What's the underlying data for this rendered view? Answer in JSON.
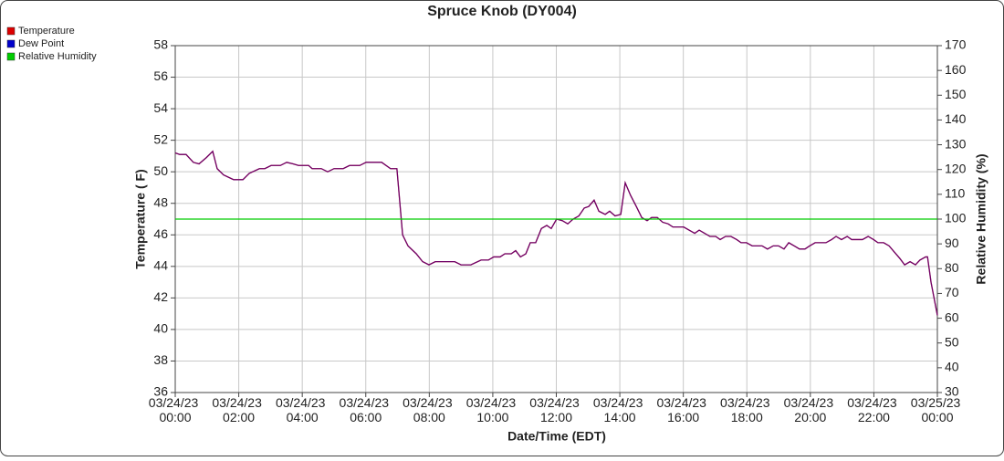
{
  "chart_data": {
    "type": "line",
    "title": "Spruce Knob (DY004)",
    "xlabel": "Date/Time (EDT)",
    "ylabel": "Temperature ( F)",
    "y2label": "Relative Humidity (%)",
    "xlim": [
      0,
      24
    ],
    "xticks": [
      {
        "value": 0,
        "label": "03/24/23 00:00"
      },
      {
        "value": 2,
        "label": "03/24/23 02:00"
      },
      {
        "value": 4,
        "label": "03/24/23 04:00"
      },
      {
        "value": 6,
        "label": "03/24/23 06:00"
      },
      {
        "value": 8,
        "label": "03/24/23 08:00"
      },
      {
        "value": 10,
        "label": "03/24/23 10:00"
      },
      {
        "value": 12,
        "label": "03/24/23 12:00"
      },
      {
        "value": 14,
        "label": "03/24/23 14:00"
      },
      {
        "value": 16,
        "label": "03/24/23 16:00"
      },
      {
        "value": 18,
        "label": "03/24/23 18:00"
      },
      {
        "value": 20,
        "label": "03/24/23 20:00"
      },
      {
        "value": 22,
        "label": "03/24/23 22:00"
      },
      {
        "value": 24,
        "label": "03/25/23 00:00"
      }
    ],
    "ylim": [
      36,
      58
    ],
    "yticks": [
      36,
      38,
      40,
      42,
      44,
      46,
      48,
      50,
      52,
      54,
      56,
      58
    ],
    "y2lim": [
      30,
      170
    ],
    "y2ticks": [
      30,
      40,
      50,
      60,
      70,
      80,
      90,
      100,
      110,
      120,
      130,
      140,
      150,
      160,
      170
    ],
    "grid": true,
    "legend": "top-left",
    "series": [
      {
        "name": "Temperature",
        "color": "#dd0000",
        "x": [
          0,
          0.14,
          0.34,
          0.57,
          0.75,
          0.98,
          1.18,
          1.32,
          1.52,
          1.84,
          2.13,
          2.33,
          2.65,
          2.82,
          3.02,
          3.31,
          3.51,
          3.71,
          3.88,
          4.2,
          4.31,
          4.6,
          4.8,
          5.0,
          5.29,
          5.49,
          5.81,
          6.01,
          6.5,
          6.78,
          6.98,
          7.16,
          7.33,
          7.59,
          7.79,
          7.99,
          8.19,
          8.8,
          9.0,
          9.31,
          9.63,
          9.86,
          10.03,
          10.23,
          10.38,
          10.58,
          10.72,
          10.87,
          11.04,
          11.18,
          11.35,
          11.53,
          11.7,
          11.84,
          12.01,
          12.19,
          12.36,
          12.53,
          12.71,
          12.88,
          13.02,
          13.19,
          13.34,
          13.54,
          13.68,
          13.85,
          14.03,
          14.17,
          14.34,
          14.52,
          14.69,
          14.86,
          15.0,
          15.18,
          15.35,
          15.52,
          15.67,
          16.01,
          16.18,
          16.36,
          16.5,
          16.67,
          16.84,
          17.02,
          17.16,
          17.33,
          17.5,
          17.68,
          17.82,
          17.99,
          18.17,
          18.48,
          18.65,
          18.83,
          19.0,
          19.17,
          19.32,
          19.49,
          19.66,
          19.83,
          19.98,
          20.15,
          20.49,
          20.67,
          20.81,
          20.98,
          21.16,
          21.3,
          21.64,
          21.82,
          21.99,
          22.13,
          22.31,
          22.48,
          22.65,
          22.82,
          22.97,
          23.14,
          23.31,
          23.45,
          23.63,
          23.69,
          23.8,
          24
        ],
        "values": [
          51.2,
          51.1,
          51.1,
          50.6,
          50.5,
          50.9,
          51.3,
          50.2,
          49.8,
          49.5,
          49.5,
          49.9,
          50.2,
          50.2,
          50.4,
          50.4,
          50.6,
          50.5,
          50.4,
          50.4,
          50.2,
          50.2,
          50.0,
          50.2,
          50.2,
          50.4,
          50.4,
          50.6,
          50.6,
          50.2,
          50.2,
          46.0,
          45.3,
          44.8,
          44.3,
          44.1,
          44.3,
          44.3,
          44.1,
          44.1,
          44.4,
          44.4,
          44.6,
          44.6,
          44.8,
          44.8,
          45.0,
          44.6,
          44.8,
          45.5,
          45.5,
          46.4,
          46.6,
          46.4,
          47.0,
          46.9,
          46.7,
          47.0,
          47.2,
          47.7,
          47.8,
          48.2,
          47.5,
          47.3,
          47.5,
          47.2,
          47.3,
          49.3,
          48.5,
          47.8,
          47.1,
          46.9,
          47.1,
          47.1,
          46.8,
          46.7,
          46.5,
          46.5,
          46.3,
          46.1,
          46.3,
          46.1,
          45.9,
          45.9,
          45.7,
          45.9,
          45.9,
          45.7,
          45.5,
          45.5,
          45.3,
          45.3,
          45.1,
          45.3,
          45.3,
          45.1,
          45.5,
          45.3,
          45.1,
          45.1,
          45.3,
          45.5,
          45.5,
          45.7,
          45.9,
          45.7,
          45.9,
          45.7,
          45.7,
          45.9,
          45.7,
          45.5,
          45.5,
          45.3,
          44.9,
          44.5,
          44.1,
          44.3,
          44.1,
          44.4,
          44.6,
          44.6,
          43.0,
          40.9
        ]
      },
      {
        "name": "Dew Point",
        "color": "#0000cc",
        "x": [
          0,
          0.14,
          0.34,
          0.57,
          0.75,
          0.98,
          1.18,
          1.32,
          1.52,
          1.84,
          2.13,
          2.33,
          2.65,
          2.82,
          3.02,
          3.31,
          3.51,
          3.71,
          3.88,
          4.2,
          4.31,
          4.6,
          4.8,
          5.0,
          5.29,
          5.49,
          5.81,
          6.01,
          6.5,
          6.78,
          6.98,
          7.16,
          7.33,
          7.59,
          7.79,
          7.99,
          8.19,
          8.8,
          9.0,
          9.31,
          9.63,
          9.86,
          10.03,
          10.23,
          10.38,
          10.58,
          10.72,
          10.87,
          11.04,
          11.18,
          11.35,
          11.53,
          11.7,
          11.84,
          12.01,
          12.19,
          12.36,
          12.53,
          12.71,
          12.88,
          13.02,
          13.19,
          13.34,
          13.54,
          13.68,
          13.85,
          14.03,
          14.17,
          14.34,
          14.52,
          14.69,
          14.86,
          15.0,
          15.18,
          15.35,
          15.52,
          15.67,
          16.01,
          16.18,
          16.36,
          16.5,
          16.67,
          16.84,
          17.02,
          17.16,
          17.33,
          17.5,
          17.68,
          17.82,
          17.99,
          18.17,
          18.48,
          18.65,
          18.83,
          19.0,
          19.17,
          19.32,
          19.49,
          19.66,
          19.83,
          19.98,
          20.15,
          20.49,
          20.67,
          20.81,
          20.98,
          21.16,
          21.3,
          21.64,
          21.82,
          21.99,
          22.13,
          22.31,
          22.48,
          22.65,
          22.82,
          22.97,
          23.14,
          23.31,
          23.45,
          23.63,
          23.69,
          23.8,
          24
        ],
        "values": [
          51.2,
          51.1,
          51.1,
          50.6,
          50.5,
          50.9,
          51.3,
          50.2,
          49.8,
          49.5,
          49.5,
          49.9,
          50.2,
          50.2,
          50.4,
          50.4,
          50.6,
          50.5,
          50.4,
          50.4,
          50.2,
          50.2,
          50.0,
          50.2,
          50.2,
          50.4,
          50.4,
          50.6,
          50.6,
          50.2,
          50.2,
          46.0,
          45.3,
          44.8,
          44.3,
          44.1,
          44.3,
          44.3,
          44.1,
          44.1,
          44.4,
          44.4,
          44.6,
          44.6,
          44.8,
          44.8,
          45.0,
          44.6,
          44.8,
          45.5,
          45.5,
          46.4,
          46.6,
          46.4,
          47.0,
          46.9,
          46.7,
          47.0,
          47.2,
          47.7,
          47.8,
          48.2,
          47.5,
          47.3,
          47.5,
          47.2,
          47.3,
          49.3,
          48.5,
          47.8,
          47.1,
          46.9,
          47.1,
          47.1,
          46.8,
          46.7,
          46.5,
          46.5,
          46.3,
          46.1,
          46.3,
          46.1,
          45.9,
          45.9,
          45.7,
          45.9,
          45.9,
          45.7,
          45.5,
          45.5,
          45.3,
          45.3,
          45.1,
          45.3,
          45.3,
          45.1,
          45.5,
          45.3,
          45.1,
          45.1,
          45.3,
          45.5,
          45.5,
          45.7,
          45.9,
          45.7,
          45.9,
          45.7,
          45.7,
          45.9,
          45.7,
          45.5,
          45.5,
          45.3,
          44.9,
          44.5,
          44.1,
          44.3,
          44.1,
          44.4,
          44.6,
          44.6,
          43.0,
          40.9
        ]
      },
      {
        "name": "Relative Humidity",
        "color": "#00cc00",
        "axis": "y2",
        "x": [
          0,
          24
        ],
        "values": [
          100,
          100
        ]
      }
    ]
  }
}
